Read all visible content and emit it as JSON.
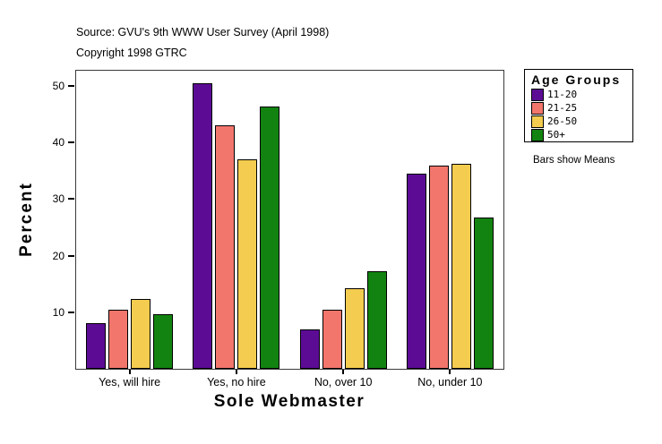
{
  "header": {
    "source_line": "Source: GVU's 9th WWW User Survey (April 1998)",
    "copyright_line": "Copyright 1998 GTRC"
  },
  "chart_data": {
    "type": "bar",
    "title": "",
    "xlabel": "Sole Webmaster",
    "ylabel": "Percent",
    "categories": [
      "Yes, will hire",
      "Yes, no hire",
      "No, over 10",
      "No, under 10"
    ],
    "series": [
      {
        "name": "11-20",
        "color": "#5C0C94",
        "values": [
          8.0,
          50.5,
          7.0,
          34.5
        ]
      },
      {
        "name": "21-25",
        "color": "#F2766C",
        "values": [
          10.5,
          43.0,
          10.5,
          36.0
        ]
      },
      {
        "name": "26-50",
        "color": "#F4CC4F",
        "values": [
          12.3,
          37.0,
          14.2,
          36.3
        ]
      },
      {
        "name": "50+",
        "color": "#128310",
        "values": [
          9.7,
          46.3,
          17.2,
          26.8
        ]
      }
    ],
    "y_ticks": [
      10,
      20,
      30,
      40,
      50
    ],
    "ylim": [
      0,
      52.7
    ],
    "grid": false,
    "legend_position": "right",
    "legend_title": "Age Groups",
    "legend_note": "Bars show Means"
  }
}
